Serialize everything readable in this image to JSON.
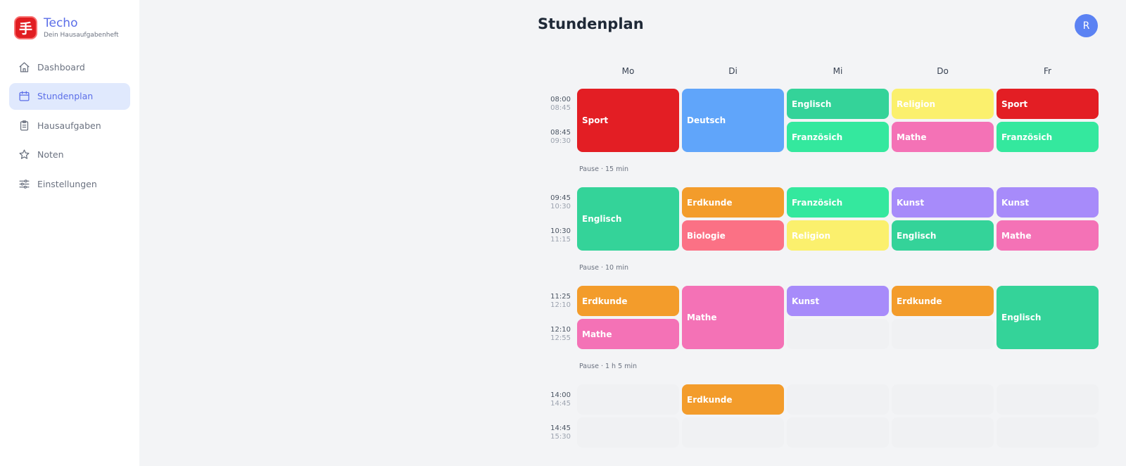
{
  "app": {
    "name": "Techo",
    "tagline": "Dein Hausaufgabenheft",
    "logo_glyph": "手"
  },
  "nav": [
    {
      "label": "Dashboard",
      "icon": "home-icon",
      "active": false
    },
    {
      "label": "Stundenplan",
      "icon": "calendar-icon",
      "active": true
    },
    {
      "label": "Hausaufgaben",
      "icon": "clipboard-icon",
      "active": false
    },
    {
      "label": "Noten",
      "icon": "star-icon",
      "active": false
    },
    {
      "label": "Einstellungen",
      "icon": "sliders-icon",
      "active": false
    }
  ],
  "header": {
    "title": "Stundenplan",
    "avatar_initial": "R"
  },
  "schedule": {
    "days": [
      "Mo",
      "Di",
      "Mi",
      "Do",
      "Fr"
    ],
    "periods": [
      {
        "start": "08:00",
        "end": "08:45"
      },
      {
        "start": "08:45",
        "end": "09:30"
      },
      {
        "start": "09:45",
        "end": "10:30"
      },
      {
        "start": "10:30",
        "end": "11:15"
      },
      {
        "start": "11:25",
        "end": "12:10"
      },
      {
        "start": "12:10",
        "end": "12:55"
      },
      {
        "start": "14:00",
        "end": "14:45"
      },
      {
        "start": "14:45",
        "end": "15:30"
      }
    ],
    "pauses": [
      {
        "after_period": 1,
        "label": "Pause · 15 min"
      },
      {
        "after_period": 3,
        "label": "Pause · 10 min"
      },
      {
        "after_period": 5,
        "label": "Pause · 1 h 5 min"
      }
    ],
    "lessons": [
      {
        "day": 0,
        "period": 0,
        "span": 2,
        "subject": "Sport",
        "color": "#e31e24"
      },
      {
        "day": 1,
        "period": 0,
        "span": 2,
        "subject": "Deutsch",
        "color": "#60a5fa"
      },
      {
        "day": 2,
        "period": 0,
        "span": 1,
        "subject": "Englisch",
        "color": "#34d399"
      },
      {
        "day": 2,
        "period": 1,
        "span": 1,
        "subject": "Französich",
        "color": "#34e89e"
      },
      {
        "day": 3,
        "period": 0,
        "span": 1,
        "subject": "Religion",
        "color": "#fbf06d"
      },
      {
        "day": 3,
        "period": 1,
        "span": 1,
        "subject": "Mathe",
        "color": "#f472b6"
      },
      {
        "day": 4,
        "period": 0,
        "span": 1,
        "subject": "Sport",
        "color": "#e31e24"
      },
      {
        "day": 4,
        "period": 1,
        "span": 1,
        "subject": "Französich",
        "color": "#34e89e"
      },
      {
        "day": 0,
        "period": 2,
        "span": 2,
        "subject": "Englisch",
        "color": "#34d399"
      },
      {
        "day": 1,
        "period": 2,
        "span": 1,
        "subject": "Erdkunde",
        "color": "#f39c2b"
      },
      {
        "day": 1,
        "period": 3,
        "span": 1,
        "subject": "Biologie",
        "color": "#fb7185"
      },
      {
        "day": 2,
        "period": 2,
        "span": 1,
        "subject": "Französich",
        "color": "#34e89e"
      },
      {
        "day": 2,
        "period": 3,
        "span": 1,
        "subject": "Religion",
        "color": "#fbf06d"
      },
      {
        "day": 3,
        "period": 2,
        "span": 1,
        "subject": "Kunst",
        "color": "#a78bfa"
      },
      {
        "day": 3,
        "period": 3,
        "span": 1,
        "subject": "Englisch",
        "color": "#34d399"
      },
      {
        "day": 4,
        "period": 2,
        "span": 1,
        "subject": "Kunst",
        "color": "#a78bfa"
      },
      {
        "day": 4,
        "period": 3,
        "span": 1,
        "subject": "Mathe",
        "color": "#f472b6"
      },
      {
        "day": 0,
        "period": 4,
        "span": 1,
        "subject": "Erdkunde",
        "color": "#f39c2b"
      },
      {
        "day": 0,
        "period": 5,
        "span": 1,
        "subject": "Mathe",
        "color": "#f472b6"
      },
      {
        "day": 1,
        "period": 4,
        "span": 2,
        "subject": "Mathe",
        "color": "#f472b6"
      },
      {
        "day": 2,
        "period": 4,
        "span": 1,
        "subject": "Kunst",
        "color": "#a78bfa"
      },
      {
        "day": 3,
        "period": 4,
        "span": 1,
        "subject": "Erdkunde",
        "color": "#f39c2b"
      },
      {
        "day": 4,
        "period": 4,
        "span": 2,
        "subject": "Englisch",
        "color": "#34d399"
      },
      {
        "day": 1,
        "period": 6,
        "span": 1,
        "subject": "Erdkunde",
        "color": "#f39c2b"
      }
    ]
  }
}
